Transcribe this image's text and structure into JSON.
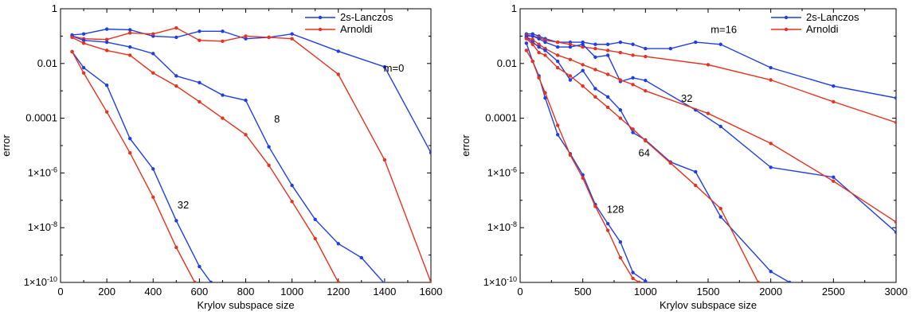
{
  "chart_data": [
    {
      "type": "line",
      "xlabel": "Krylov subspace size",
      "ylabel": "error",
      "xlim": [
        0,
        1600
      ],
      "ylim": [
        1e-10,
        1
      ],
      "yscale": "log",
      "xticks": [
        0,
        200,
        400,
        600,
        800,
        1000,
        1200,
        1400,
        1600
      ],
      "xticklabels": [
        "0",
        "200",
        "400",
        "600",
        "800",
        "1000",
        "1200",
        "1400",
        "1600"
      ],
      "yticks": [
        1e-10,
        1e-08,
        1e-06,
        0.0001,
        0.01,
        1
      ],
      "yticklabels": [
        {
          "base": "1×10",
          "exp": "-10"
        },
        {
          "base": "1×10",
          "exp": "-8"
        },
        {
          "base": "1×10",
          "exp": "-6"
        },
        {
          "base": "0.0001",
          "exp": ""
        },
        {
          "base": "0.01",
          "exp": ""
        },
        {
          "base": "1",
          "exp": ""
        }
      ],
      "legend": {
        "placement": "top-right",
        "entries": [
          "2s-Lanczos",
          "Arnoldi"
        ]
      },
      "colors": {
        "2s-Lanczos": "#1f3fe6",
        "Arnoldi": "#e8321e"
      },
      "annotations": [
        {
          "text": "m=0",
          "x": 1440,
          "y": 0.005
        },
        {
          "text": "8",
          "x": 935,
          "y": 7e-05
        },
        {
          "text": "32",
          "x": 530,
          "y": 5e-08
        }
      ],
      "series": [
        {
          "name": "2s-Lanczos",
          "group": "m=0",
          "x": [
            50,
            100,
            200,
            300,
            400,
            500,
            600,
            700,
            800,
            900,
            1000,
            1200,
            1400,
            1600
          ],
          "y": [
            0.11,
            0.12,
            0.18,
            0.17,
            0.1,
            0.09,
            0.15,
            0.15,
            0.08,
            0.09,
            0.12,
            0.028,
            0.0075,
            5.5e-06
          ]
        },
        {
          "name": "Arnoldi",
          "group": "m=0",
          "x": [
            50,
            100,
            200,
            300,
            400,
            500,
            600,
            700,
            800,
            900,
            1000,
            1200,
            1400,
            1600
          ],
          "y": [
            0.1,
            0.08,
            0.075,
            0.13,
            0.12,
            0.2,
            0.07,
            0.065,
            0.1,
            0.09,
            0.08,
            0.004,
            3e-06,
            1e-10
          ]
        },
        {
          "name": "2s-Lanczos",
          "group": "8",
          "x": [
            50,
            100,
            200,
            300,
            400,
            500,
            600,
            700,
            800,
            900,
            1000,
            1100,
            1200,
            1300,
            1400
          ],
          "y": [
            0.1,
            0.07,
            0.06,
            0.04,
            0.023,
            0.0035,
            0.002,
            0.0007,
            0.00045,
            9e-06,
            3.5e-07,
            2e-08,
            2.6e-09,
            8e-10,
            9e-11
          ]
        },
        {
          "name": "Arnoldi",
          "group": "8",
          "x": [
            50,
            100,
            200,
            300,
            400,
            500,
            600,
            700,
            800,
            900,
            1000,
            1100,
            1200
          ],
          "y": [
            0.09,
            0.055,
            0.03,
            0.02,
            0.0045,
            0.0015,
            0.0004,
            0.0001,
            2.5e-05,
            1.9e-06,
            9e-08,
            4e-09,
            1e-10
          ]
        },
        {
          "name": "2s-Lanczos",
          "group": "32",
          "x": [
            50,
            100,
            200,
            300,
            400,
            500,
            600,
            650
          ],
          "y": [
            0.027,
            0.007,
            0.0016,
            1.8e-05,
            1.4e-06,
            1.8e-08,
            3.8e-10,
            1e-10
          ]
        },
        {
          "name": "Arnoldi",
          "group": "32",
          "x": [
            50,
            100,
            200,
            300,
            400,
            500,
            580
          ],
          "y": [
            0.027,
            0.0045,
            0.00017,
            5.4e-06,
            1.3e-07,
            1.9e-09,
            1e-10
          ]
        }
      ]
    },
    {
      "type": "line",
      "xlabel": "Krylov subspace size",
      "ylabel": "error",
      "xlim": [
        0,
        3000
      ],
      "ylim": [
        1e-10,
        1
      ],
      "yscale": "log",
      "xticks": [
        0,
        500,
        1000,
        1500,
        2000,
        2500,
        3000
      ],
      "xticklabels": [
        "0",
        "500",
        "1000",
        "1500",
        "2000",
        "2500",
        "3000"
      ],
      "yticks": [
        1e-10,
        1e-08,
        1e-06,
        0.0001,
        0.01,
        1
      ],
      "yticklabels": [
        {
          "base": "1×10",
          "exp": "-10"
        },
        {
          "base": "1×10",
          "exp": "-8"
        },
        {
          "base": "1×10",
          "exp": "-6"
        },
        {
          "base": "0.0001",
          "exp": ""
        },
        {
          "base": "0.01",
          "exp": ""
        },
        {
          "base": "1",
          "exp": ""
        }
      ],
      "legend": {
        "placement": "top-right",
        "entries": [
          "2s-Lanczos",
          "Arnoldi"
        ]
      },
      "colors": {
        "2s-Lanczos": "#1f3fe6",
        "Arnoldi": "#e8321e"
      },
      "annotations": [
        {
          "text": "m=16",
          "x": 1625,
          "y": 0.13
        },
        {
          "text": "32",
          "x": 1330,
          "y": 0.0004
        },
        {
          "text": "64",
          "x": 990,
          "y": 4e-06
        },
        {
          "text": "128",
          "x": 760,
          "y": 3.5e-08
        }
      ],
      "series": [
        {
          "name": "2s-Lanczos",
          "group": "m=16",
          "x": [
            50,
            100,
            150,
            200,
            300,
            400,
            500,
            600,
            700,
            800,
            900,
            1000,
            1200,
            1400,
            1600,
            2000,
            2500,
            3000
          ],
          "y": [
            0.12,
            0.12,
            0.1,
            0.08,
            0.06,
            0.06,
            0.06,
            0.05,
            0.05,
            0.06,
            0.05,
            0.035,
            0.035,
            0.06,
            0.05,
            0.007,
            0.0015,
            0.00055
          ]
        },
        {
          "name": "Arnoldi",
          "group": "m=16",
          "x": [
            50,
            100,
            150,
            200,
            300,
            400,
            500,
            600,
            700,
            800,
            900,
            1000,
            1500,
            2000,
            2500,
            3000
          ],
          "y": [
            0.11,
            0.1,
            0.09,
            0.07,
            0.06,
            0.05,
            0.04,
            0.035,
            0.03,
            0.025,
            0.02,
            0.018,
            0.009,
            0.0025,
            0.0004,
            7e-05
          ]
        },
        {
          "name": "2s-Lanczos",
          "group": "32",
          "x": [
            50,
            100,
            150,
            200,
            300,
            400,
            500,
            600,
            700,
            800,
            900,
            1000,
            1400,
            1600,
            2000,
            2500,
            3000
          ],
          "y": [
            0.1,
            0.1,
            0.08,
            0.06,
            0.04,
            0.04,
            0.05,
            0.017,
            0.02,
            0.0022,
            0.003,
            0.0024,
            0.0002,
            5e-05,
            1.6e-06,
            7e-07,
            6.8e-09
          ]
        },
        {
          "name": "Arnoldi",
          "group": "32",
          "x": [
            50,
            100,
            150,
            200,
            300,
            400,
            500,
            600,
            700,
            800,
            900,
            1000,
            1500,
            2000,
            2500,
            3000
          ],
          "y": [
            0.09,
            0.075,
            0.05,
            0.035,
            0.02,
            0.014,
            0.009,
            0.006,
            0.004,
            0.0025,
            0.0017,
            0.001,
            0.00015,
            1.2e-05,
            5e-07,
            1.6e-08
          ]
        },
        {
          "name": "2s-Lanczos",
          "group": "64",
          "x": [
            50,
            100,
            150,
            200,
            300,
            400,
            500,
            600,
            700,
            800,
            900,
            1000,
            1200,
            1400,
            1600,
            2000,
            2150
          ],
          "y": [
            0.09,
            0.06,
            0.04,
            0.03,
            0.012,
            0.0025,
            0.0055,
            0.0012,
            0.0006,
            0.0002,
            3e-05,
            1.6e-05,
            2.5e-06,
            1.1e-06,
            2.5e-08,
            2.5e-10,
            1e-10
          ]
        },
        {
          "name": "Arnoldi",
          "group": "64",
          "x": [
            50,
            100,
            150,
            200,
            300,
            400,
            500,
            600,
            700,
            800,
            900,
            1000,
            1200,
            1400,
            1600,
            1900
          ],
          "y": [
            0.08,
            0.05,
            0.025,
            0.02,
            0.007,
            0.0035,
            0.0015,
            0.0006,
            0.00025,
            0.0001,
            4e-05,
            1.5e-05,
            2.3e-06,
            3.5e-07,
            5e-08,
            1e-10
          ]
        },
        {
          "name": "2s-Lanczos",
          "group": "128",
          "x": [
            50,
            100,
            150,
            200,
            300,
            400,
            500,
            600,
            700,
            800,
            900,
            1000,
            1040
          ],
          "y": [
            0.055,
            0.012,
            0.0035,
            0.00055,
            2.5e-05,
            5e-06,
            8.5e-07,
            7e-08,
            1.4e-08,
            3e-09,
            2.3e-10,
            1.1e-10,
            8e-11
          ]
        },
        {
          "name": "Arnoldi",
          "group": "128",
          "x": [
            50,
            100,
            150,
            200,
            300,
            400,
            500,
            600,
            700,
            800,
            900,
            950
          ],
          "y": [
            0.03,
            0.012,
            0.003,
            0.00085,
            5.5e-05,
            4.5e-06,
            6.5e-07,
            6e-08,
            8e-09,
            8e-10,
            1.4e-10,
            1e-10
          ]
        }
      ]
    }
  ]
}
